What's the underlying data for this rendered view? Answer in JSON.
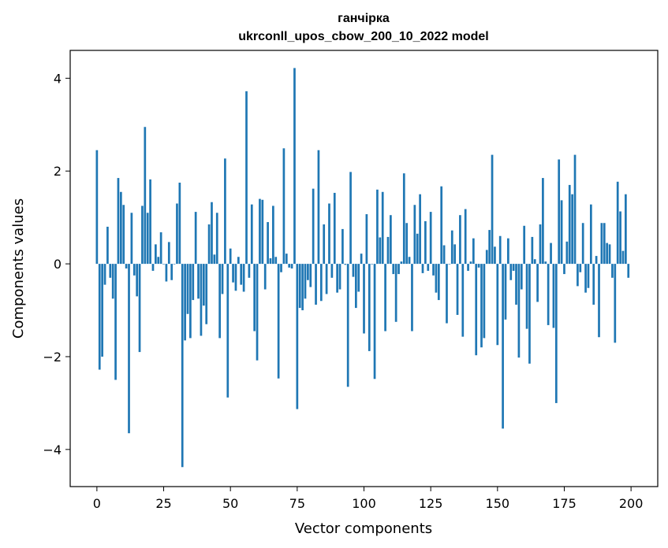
{
  "chart_data": {
    "type": "bar",
    "title_lines": [
      "ганчірка",
      "ukrconll_upos_cbow_200_10_2022 model"
    ],
    "xlabel": "Vector components",
    "ylabel": "Components values",
    "xlim": [
      -10,
      210
    ],
    "ylim": [
      -4.8,
      4.6
    ],
    "xticks": [
      0,
      25,
      50,
      75,
      100,
      125,
      150,
      175,
      200
    ],
    "xtick_labels": [
      "0",
      "25",
      "50",
      "75",
      "100",
      "125",
      "150",
      "175",
      "200"
    ],
    "yticks": [
      -4,
      -2,
      0,
      2,
      4
    ],
    "ytick_labels": [
      "−4",
      "−2",
      "0",
      "2",
      "4"
    ],
    "bar_color": "#1f77b4",
    "grid": false,
    "x": [
      0,
      1,
      2,
      3,
      4,
      5,
      6,
      7,
      8,
      9,
      10,
      11,
      12,
      13,
      14,
      15,
      16,
      17,
      18,
      19,
      20,
      21,
      22,
      23,
      24,
      25,
      26,
      27,
      28,
      29,
      30,
      31,
      32,
      33,
      34,
      35,
      36,
      37,
      38,
      39,
      40,
      41,
      42,
      43,
      44,
      45,
      46,
      47,
      48,
      49,
      50,
      51,
      52,
      53,
      54,
      55,
      56,
      57,
      58,
      59,
      60,
      61,
      62,
      63,
      64,
      65,
      66,
      67,
      68,
      69,
      70,
      71,
      72,
      73,
      74,
      75,
      76,
      77,
      78,
      79,
      80,
      81,
      82,
      83,
      84,
      85,
      86,
      87,
      88,
      89,
      90,
      91,
      92,
      93,
      94,
      95,
      96,
      97,
      98,
      99,
      100,
      101,
      102,
      103,
      104,
      105,
      106,
      107,
      108,
      109,
      110,
      111,
      112,
      113,
      114,
      115,
      116,
      117,
      118,
      119,
      120,
      121,
      122,
      123,
      124,
      125,
      126,
      127,
      128,
      129,
      130,
      131,
      132,
      133,
      134,
      135,
      136,
      137,
      138,
      139,
      140,
      141,
      142,
      143,
      144,
      145,
      146,
      147,
      148,
      149,
      150,
      151,
      152,
      153,
      154,
      155,
      156,
      157,
      158,
      159,
      160,
      161,
      162,
      163,
      164,
      165,
      166,
      167,
      168,
      169,
      170,
      171,
      172,
      173,
      174,
      175,
      176,
      177,
      178,
      179,
      180,
      181,
      182,
      183,
      184,
      185,
      186,
      187,
      188,
      189,
      190,
      191,
      192,
      193,
      194,
      195,
      196,
      197,
      198,
      199
    ],
    "values": [
      2.45,
      -2.28,
      -2.0,
      -0.45,
      0.8,
      -0.3,
      -0.75,
      -2.5,
      1.85,
      1.55,
      1.27,
      -0.1,
      -3.65,
      1.1,
      -0.25,
      -0.7,
      -1.9,
      1.25,
      2.95,
      1.1,
      1.82,
      -0.15,
      0.42,
      0.15,
      0.68,
      0.0,
      -0.38,
      0.47,
      -0.35,
      0.0,
      1.3,
      1.75,
      -4.38,
      -1.65,
      -1.08,
      -1.6,
      -0.78,
      1.12,
      -0.75,
      -1.55,
      -0.9,
      -1.3,
      0.85,
      1.33,
      0.2,
      1.1,
      -1.6,
      -0.65,
      2.27,
      -2.88,
      0.33,
      -0.4,
      -0.58,
      0.15,
      -0.45,
      -0.6,
      3.72,
      -0.3,
      1.28,
      -1.45,
      -2.08,
      1.4,
      1.38,
      -0.55,
      0.9,
      0.12,
      1.25,
      0.15,
      -2.47,
      -0.18,
      2.49,
      0.22,
      -0.08,
      -0.1,
      4.22,
      -3.13,
      -0.95,
      -1.0,
      -0.75,
      -0.35,
      -0.5,
      1.62,
      -0.88,
      2.45,
      -0.8,
      0.85,
      -0.65,
      1.3,
      -0.3,
      1.53,
      -0.62,
      -0.55,
      0.75,
      -0.02,
      -2.65,
      1.98,
      -0.28,
      -0.95,
      -0.6,
      0.22,
      -1.5,
      1.07,
      -1.88,
      0.0,
      -2.48,
      1.6,
      0.57,
      1.55,
      -1.45,
      0.58,
      1.05,
      -0.22,
      -1.25,
      -0.22,
      0.05,
      1.95,
      0.88,
      0.15,
      -1.45,
      1.27,
      0.65,
      1.5,
      -0.2,
      0.92,
      -0.15,
      1.12,
      -0.25,
      -0.62,
      -0.78,
      1.67,
      0.4,
      -1.28,
      0.0,
      0.72,
      0.42,
      -1.1,
      1.05,
      -1.57,
      1.18,
      -0.15,
      0.05,
      0.55,
      -1.97,
      -0.08,
      -1.8,
      -1.6,
      0.3,
      0.73,
      2.35,
      0.37,
      -1.75,
      0.6,
      -3.55,
      -1.2,
      0.55,
      -0.35,
      -0.15,
      -0.88,
      -2.02,
      -0.55,
      0.82,
      -1.4,
      -2.15,
      0.58,
      0.1,
      -0.82,
      0.85,
      1.85,
      0.05,
      -1.32,
      0.45,
      -1.38,
      -3.0,
      2.25,
      1.37,
      -0.22,
      0.48,
      1.7,
      1.5,
      2.35,
      -0.48,
      -0.18,
      0.88,
      -0.62,
      -0.52,
      1.28,
      -0.88,
      0.17,
      -1.58,
      0.88,
      0.88,
      0.45,
      0.42,
      -0.3,
      -1.7,
      1.77,
      1.13,
      0.28,
      1.5,
      -0.3
    ]
  }
}
